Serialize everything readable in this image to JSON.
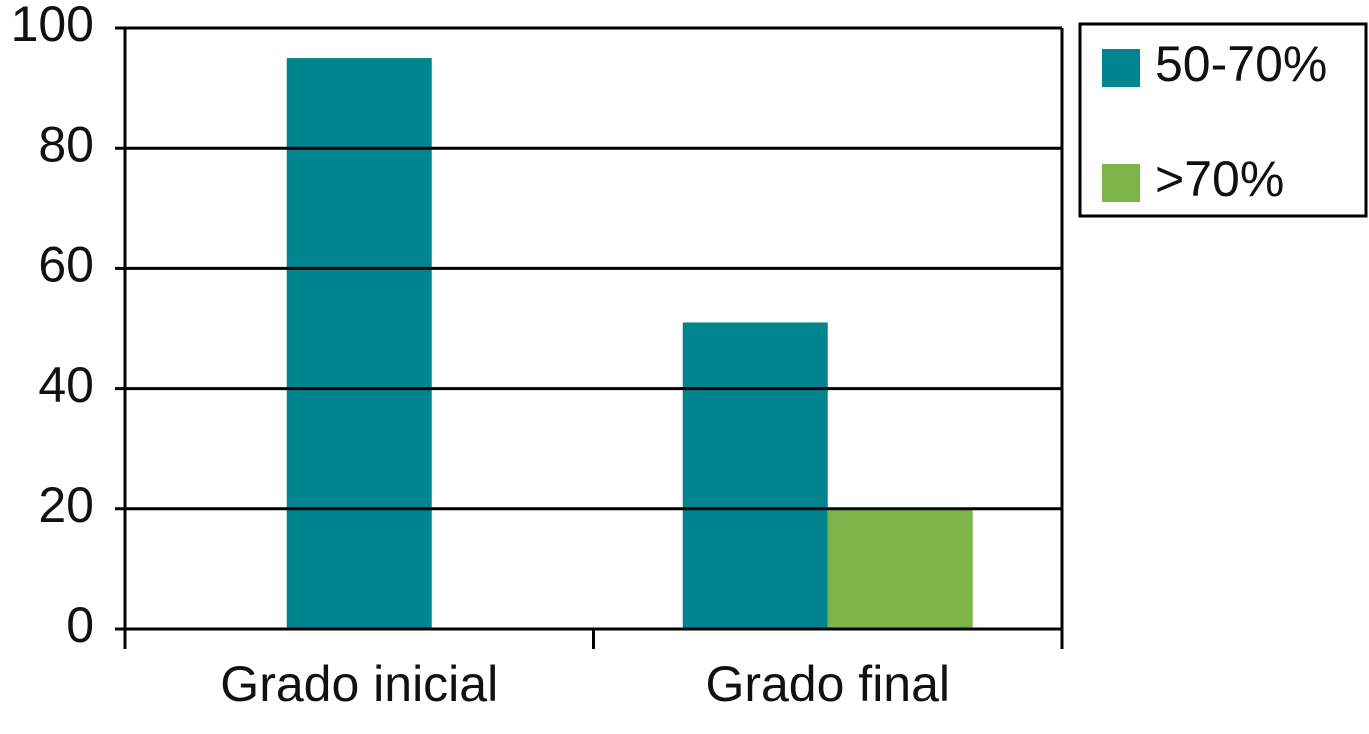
{
  "chart_data": {
    "type": "bar",
    "categories": [
      "Grado inicial",
      "Grado final"
    ],
    "series": [
      {
        "name": "50-70%",
        "color": "#008590",
        "values": [
          95,
          51
        ]
      },
      {
        "name": ">70%",
        "color": "#7cb64a",
        "values": [
          null,
          20
        ]
      }
    ],
    "ylim": [
      0,
      100
    ],
    "yticks": [
      0,
      20,
      40,
      60,
      80,
      100
    ],
    "grid": true,
    "legend": "right"
  }
}
